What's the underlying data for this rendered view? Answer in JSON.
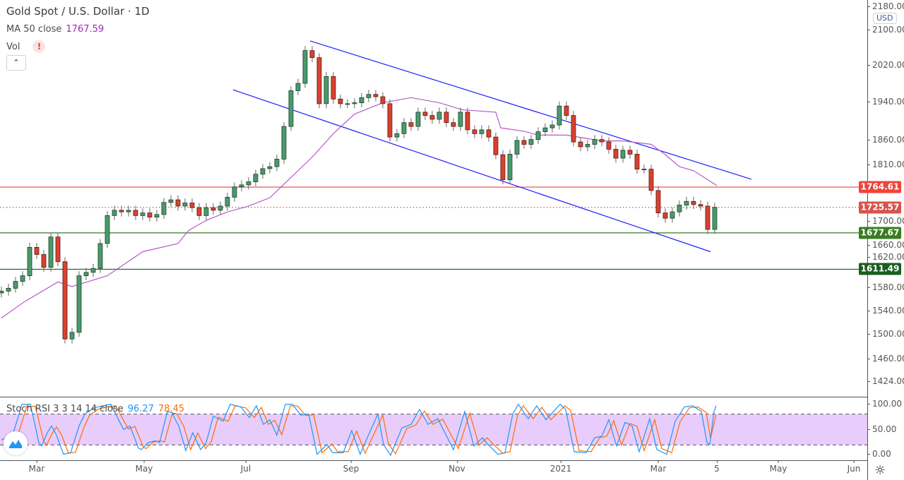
{
  "header": {
    "title": "Gold Spot / U.S. Dollar · 1D",
    "ma_label": "MA 50 close",
    "ma_value": "1767.59",
    "vol_label": "Vol",
    "vol_warning": "!",
    "collapse_icon": "chevron-up-icon",
    "currency": "USD"
  },
  "stoch": {
    "label": "Stoch RSI 3 3 14 14 close",
    "k_value": "96.27",
    "d_value": "78.45",
    "ticks": [
      "100.00",
      "50.00",
      "0.00"
    ]
  },
  "colors": {
    "up": "#4a9a6c",
    "up_border": "#1c3f2b",
    "down": "#d9412f",
    "down_border": "#5a1a12",
    "channel": "#1f1fff",
    "ma": "#b45cc8",
    "stoch_k": "#2196f3",
    "stoch_d": "#ff6d00",
    "stoch_band": "#e8cdfc"
  },
  "chart_data": {
    "type": "candlestick",
    "scale": "log",
    "price_ticks": [
      "2180.00",
      "2100.00",
      "2020.00",
      "1940.00",
      "1860.00",
      "1810.00",
      "1700.00",
      "1660.00",
      "1620.00",
      "1580.00",
      "1540.00",
      "1500.00",
      "1460.00",
      "1424.00"
    ],
    "time_ticks": [
      {
        "label": "Mar",
        "bar": 5.0
      },
      {
        "label": "May",
        "bar": 20.2
      },
      {
        "label": "Jul",
        "bar": 34.6
      },
      {
        "label": "Sep",
        "bar": 49.5
      },
      {
        "label": "Nov",
        "bar": 64.5
      },
      {
        "label": "2021",
        "bar": 79.2
      },
      {
        "label": "Mar",
        "bar": 93.0
      },
      {
        "label": "5",
        "bar": 101.3
      },
      {
        "label": "May",
        "bar": 110.0
      },
      {
        "label": "Jun",
        "bar": 120.7
      }
    ],
    "closes": [
      1573,
      1578,
      1590,
      1600,
      1651,
      1638,
      1615,
      1670,
      1625,
      1492,
      1503,
      1600,
      1606,
      1613,
      1658,
      1710,
      1720,
      1717,
      1720,
      1710,
      1715,
      1707,
      1712,
      1735,
      1740,
      1728,
      1734,
      1725,
      1710,
      1725,
      1720,
      1728,
      1745,
      1765,
      1769,
      1775,
      1790,
      1801,
      1805,
      1820,
      1887,
      1963,
      1979,
      2052,
      2036,
      1935,
      1994,
      1945,
      1935,
      1935,
      1937,
      1948,
      1955,
      1950,
      1935,
      1865,
      1872,
      1895,
      1887,
      1917,
      1910,
      1902,
      1917,
      1895,
      1887,
      1917,
      1880,
      1872,
      1880,
      1865,
      1829,
      1779,
      1830,
      1858,
      1850,
      1860,
      1876,
      1884,
      1890,
      1930,
      1910,
      1855,
      1845,
      1850,
      1860,
      1855,
      1840,
      1822,
      1838,
      1830,
      1800,
      1800,
      1758,
      1715,
      1705,
      1717,
      1730,
      1737,
      1731,
      1728,
      1684,
      1725.57
    ],
    "ma50": [
      [
        0,
        1527
      ],
      [
        3.3,
        1555
      ],
      [
        8,
        1589
      ],
      [
        10,
        1581
      ],
      [
        15,
        1600
      ],
      [
        20,
        1643
      ],
      [
        25,
        1658
      ],
      [
        26.5,
        1682
      ],
      [
        29,
        1701
      ],
      [
        32,
        1717
      ],
      [
        35,
        1728
      ],
      [
        38,
        1744
      ],
      [
        44,
        1824
      ],
      [
        47,
        1872
      ],
      [
        50,
        1913
      ],
      [
        54,
        1937
      ],
      [
        58,
        1948
      ],
      [
        62,
        1937
      ],
      [
        65.3,
        1922
      ],
      [
        70,
        1917
      ],
      [
        70.7,
        1884
      ],
      [
        74,
        1877
      ],
      [
        76,
        1869
      ],
      [
        80,
        1869
      ],
      [
        85,
        1857
      ],
      [
        88,
        1857
      ],
      [
        92,
        1850
      ],
      [
        94,
        1829
      ],
      [
        96,
        1805
      ],
      [
        98,
        1797
      ],
      [
        101.3,
        1767.59
      ]
    ],
    "channel_upper": [
      [
        43.7,
        2074
      ],
      [
        106.2,
        1780
      ]
    ],
    "channel_lower": [
      [
        32.8,
        1965
      ],
      [
        100.4,
        1643
      ]
    ],
    "levels": [
      {
        "price": "1764.61",
        "color": "#f0443a",
        "style": "solid"
      },
      {
        "price": "1725.57",
        "color": "#d9534a",
        "style": "dotted"
      },
      {
        "price": "1677.67",
        "color": "#3a7d22",
        "style": "solid"
      },
      {
        "price": "1611.49",
        "color": "#1b5e20",
        "style": "solid"
      }
    ],
    "stoch_k": [
      [
        0,
        30
      ],
      [
        1.6,
        39
      ],
      [
        2.9,
        99
      ],
      [
        4.1,
        99
      ],
      [
        5.3,
        25
      ],
      [
        5.7,
        18
      ],
      [
        6.5,
        44
      ],
      [
        7.1,
        57
      ],
      [
        7.8,
        39
      ],
      [
        8.8,
        2
      ],
      [
        9.8,
        5
      ],
      [
        11,
        57
      ],
      [
        11.8,
        80
      ],
      [
        13.1,
        92
      ],
      [
        14.3,
        96
      ],
      [
        15.5,
        99
      ],
      [
        16.7,
        66
      ],
      [
        17.3,
        50
      ],
      [
        18.2,
        57
      ],
      [
        19.4,
        14
      ],
      [
        19.8,
        11
      ],
      [
        20.8,
        25
      ],
      [
        21.8,
        28
      ],
      [
        22.4,
        25
      ],
      [
        23.5,
        85
      ],
      [
        24.1,
        83
      ],
      [
        25.1,
        57
      ],
      [
        26.1,
        9
      ],
      [
        27.1,
        44
      ],
      [
        28.2,
        11
      ],
      [
        29,
        25
      ],
      [
        30,
        76
      ],
      [
        31.4,
        66
      ],
      [
        32.4,
        99
      ],
      [
        33.9,
        94
      ],
      [
        35.1,
        73
      ],
      [
        36.1,
        96
      ],
      [
        37.1,
        60
      ],
      [
        38,
        69
      ],
      [
        39,
        39
      ],
      [
        40.2,
        99
      ],
      [
        41.2,
        99
      ],
      [
        42.4,
        78
      ],
      [
        43.5,
        80
      ],
      [
        44.7,
        2
      ],
      [
        46.1,
        21
      ],
      [
        46.9,
        5
      ],
      [
        48.4,
        5
      ],
      [
        49.6,
        48
      ],
      [
        50.8,
        2
      ],
      [
        51.8,
        34
      ],
      [
        53.3,
        80
      ],
      [
        54.1,
        21
      ],
      [
        55.1,
        0
      ],
      [
        56.7,
        53
      ],
      [
        58,
        60
      ],
      [
        59.2,
        89
      ],
      [
        60.4,
        60
      ],
      [
        61.8,
        71
      ],
      [
        64,
        11
      ],
      [
        65.6,
        85
      ],
      [
        66.9,
        18
      ],
      [
        68.1,
        34
      ],
      [
        68.9,
        21
      ],
      [
        70.3,
        2
      ],
      [
        71.3,
        5
      ],
      [
        72.4,
        80
      ],
      [
        73.2,
        99
      ],
      [
        74.6,
        71
      ],
      [
        75.8,
        96
      ],
      [
        77.1,
        69
      ],
      [
        79.1,
        99
      ],
      [
        79.9,
        89
      ],
      [
        81.1,
        7
      ],
      [
        82.8,
        5
      ],
      [
        84,
        34
      ],
      [
        85,
        37
      ],
      [
        86,
        69
      ],
      [
        87.1,
        18
      ],
      [
        88.3,
        64
      ],
      [
        89.3,
        57
      ],
      [
        90.3,
        7
      ],
      [
        91.8,
        71
      ],
      [
        92.8,
        11
      ],
      [
        94.2,
        2
      ],
      [
        95.4,
        66
      ],
      [
        96.7,
        94
      ],
      [
        97.9,
        96
      ],
      [
        99.1,
        85
      ],
      [
        99.9,
        25
      ],
      [
        100.3,
        21
      ],
      [
        100.9,
        85
      ],
      [
        101.2,
        96.27
      ]
    ],
    "stoch_d": [
      [
        0.7,
        28
      ],
      [
        2.3,
        38
      ],
      [
        3.6,
        95
      ],
      [
        4.8,
        95
      ],
      [
        6,
        27
      ],
      [
        6.4,
        20
      ],
      [
        7.2,
        43
      ],
      [
        7.8,
        55
      ],
      [
        8.5,
        40
      ],
      [
        9.5,
        4
      ],
      [
        10.5,
        6
      ],
      [
        11.7,
        55
      ],
      [
        12.5,
        78
      ],
      [
        13.8,
        90
      ],
      [
        15,
        94
      ],
      [
        16.2,
        96
      ],
      [
        17.4,
        65
      ],
      [
        18,
        51
      ],
      [
        18.9,
        56
      ],
      [
        20.1,
        16
      ],
      [
        20.5,
        13
      ],
      [
        21.5,
        26
      ],
      [
        22.5,
        28
      ],
      [
        23.1,
        26
      ],
      [
        24.2,
        82
      ],
      [
        24.8,
        81
      ],
      [
        25.8,
        57
      ],
      [
        26.8,
        11
      ],
      [
        27.8,
        43
      ],
      [
        28.9,
        13
      ],
      [
        29.7,
        26
      ],
      [
        30.7,
        74
      ],
      [
        32.1,
        66
      ],
      [
        33.1,
        96
      ],
      [
        34.6,
        92
      ],
      [
        35.8,
        73
      ],
      [
        36.8,
        93
      ],
      [
        37.8,
        60
      ],
      [
        38.7,
        68
      ],
      [
        39.7,
        40
      ],
      [
        40.9,
        96
      ],
      [
        41.9,
        96
      ],
      [
        43.1,
        77
      ],
      [
        44.2,
        79
      ],
      [
        45.4,
        5
      ],
      [
        46.8,
        22
      ],
      [
        47.6,
        7
      ],
      [
        49.1,
        7
      ],
      [
        50.3,
        47
      ],
      [
        51.5,
        4
      ],
      [
        52.5,
        34
      ],
      [
        54,
        78
      ],
      [
        54.8,
        22
      ],
      [
        55.8,
        3
      ],
      [
        57.4,
        52
      ],
      [
        58.7,
        59
      ],
      [
        59.9,
        86
      ],
      [
        61.1,
        60
      ],
      [
        62.5,
        70
      ],
      [
        64.7,
        13
      ],
      [
        66.3,
        82
      ],
      [
        67.6,
        20
      ],
      [
        68.8,
        34
      ],
      [
        69.6,
        22
      ],
      [
        71,
        4
      ],
      [
        72,
        7
      ],
      [
        73.1,
        78
      ],
      [
        73.9,
        96
      ],
      [
        75.3,
        71
      ],
      [
        76.5,
        93
      ],
      [
        77.8,
        69
      ],
      [
        79.8,
        96
      ],
      [
        80.6,
        87
      ],
      [
        81.8,
        9
      ],
      [
        83.5,
        7
      ],
      [
        84.7,
        34
      ],
      [
        85.7,
        37
      ],
      [
        86.7,
        67
      ],
      [
        87.8,
        20
      ],
      [
        89,
        62
      ],
      [
        90,
        56
      ],
      [
        91,
        9
      ],
      [
        92.5,
        69
      ],
      [
        93.5,
        13
      ],
      [
        94.9,
        5
      ],
      [
        96.1,
        65
      ],
      [
        97.4,
        92
      ],
      [
        98.6,
        94
      ],
      [
        99.8,
        83
      ],
      [
        100.4,
        33
      ],
      [
        101.2,
        78.45
      ]
    ],
    "stoch_band": [
      20,
      80
    ]
  }
}
